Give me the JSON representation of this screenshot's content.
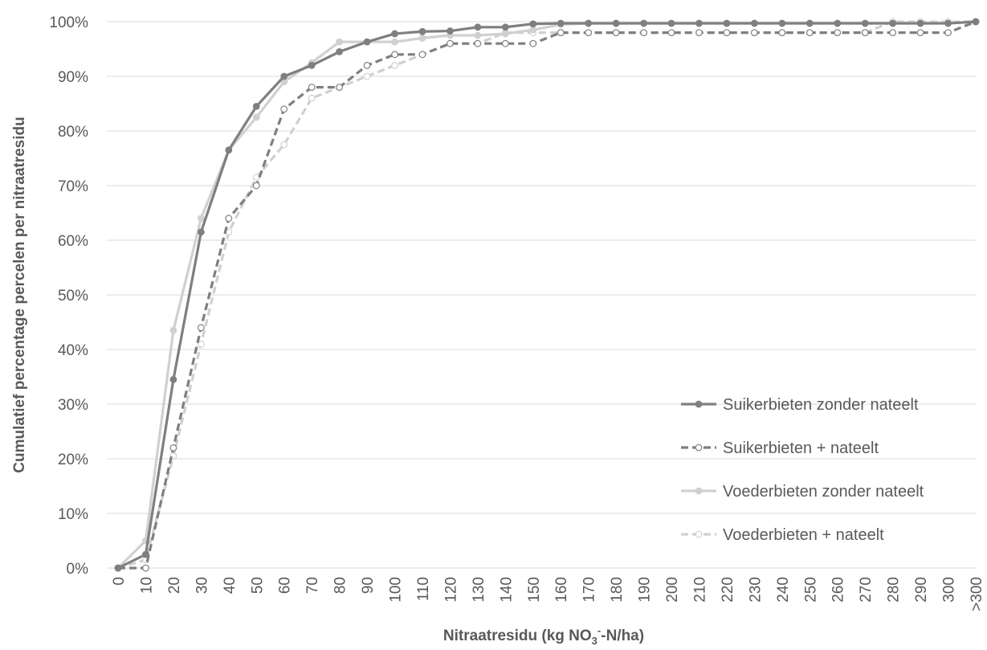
{
  "chart_data": {
    "type": "line",
    "title": "",
    "xlabel_parts": [
      "Nitraatresidu (kg NO",
      "3",
      "-",
      "-N/ha)"
    ],
    "ylabel": "Cumulatief percentage percelen per nitraatresidu",
    "categories": [
      "0",
      "10",
      "20",
      "30",
      "40",
      "50",
      "60",
      "70",
      "80",
      "90",
      "100",
      "110",
      "120",
      "130",
      "140",
      "150",
      "160",
      "170",
      "180",
      "190",
      "200",
      "210",
      "220",
      "230",
      "240",
      "250",
      "260",
      "270",
      "280",
      "290",
      "300",
      ">300"
    ],
    "y_ticks": [
      "0%",
      "10%",
      "20%",
      "30%",
      "40%",
      "50%",
      "60%",
      "70%",
      "80%",
      "90%",
      "100%"
    ],
    "ylim": [
      0,
      100
    ],
    "grid": "horizontal",
    "legend_position": "bottom-right inside",
    "series": [
      {
        "name": "Suikerbieten zonder nateelt",
        "color": "#7f7f7f",
        "dash": "solid",
        "marker": "filled",
        "values": [
          0,
          2.5,
          34.5,
          61.5,
          76.5,
          84.5,
          90,
          92,
          94.5,
          96.3,
          97.8,
          98.2,
          98.3,
          99,
          99,
          99.6,
          99.7,
          99.7,
          99.7,
          99.7,
          99.7,
          99.7,
          99.7,
          99.7,
          99.7,
          99.7,
          99.7,
          99.7,
          99.7,
          99.7,
          99.7,
          100
        ]
      },
      {
        "name": "Suikerbieten + nateelt",
        "color": "#7f7f7f",
        "dash": "dashed",
        "marker": "open",
        "values": [
          0,
          0,
          22,
          44,
          64,
          70,
          84,
          88,
          88,
          92,
          94,
          94,
          96,
          96,
          96,
          96,
          98,
          98,
          98,
          98,
          98,
          98,
          98,
          98,
          98,
          98,
          98,
          98,
          98,
          98,
          98,
          100
        ]
      },
      {
        "name": "Voederbieten zonder nateelt",
        "color": "#d0d0d0",
        "dash": "solid",
        "marker": "filled",
        "values": [
          0,
          5,
          43.5,
          64,
          76.5,
          82.5,
          89,
          92.5,
          96.3,
          96.3,
          96.3,
          97,
          97.5,
          97.5,
          97.8,
          98.5,
          99.5,
          99.7,
          99.7,
          99.7,
          99.7,
          99.7,
          99.7,
          99.7,
          99.7,
          99.7,
          99.7,
          99.7,
          99.7,
          99.7,
          99.7,
          100
        ]
      },
      {
        "name": "Voederbieten + nateelt",
        "color": "#d0d0d0",
        "dash": "dashed",
        "marker": "open",
        "values": [
          0,
          1.5,
          20.5,
          41,
          61.5,
          71.5,
          77.5,
          86,
          88,
          90,
          92,
          94,
          96,
          96,
          98,
          98,
          98,
          98,
          98,
          98,
          98,
          98,
          98,
          98,
          98,
          98,
          98,
          98,
          100,
          100,
          100,
          100
        ]
      }
    ]
  }
}
